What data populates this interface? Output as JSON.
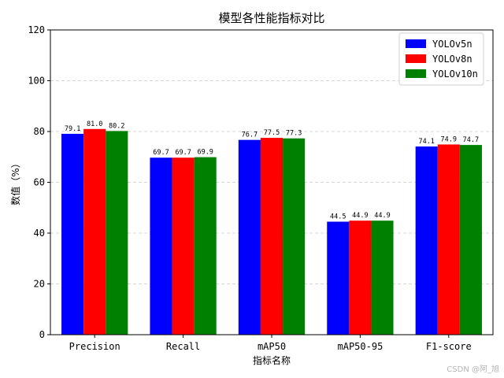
{
  "chart_data": {
    "type": "bar",
    "title": "模型各性能指标对比",
    "xlabel": "指标名称",
    "ylabel": "数值（%）",
    "ylim": [
      0,
      120
    ],
    "yticks": [
      0,
      20,
      40,
      60,
      80,
      100,
      120
    ],
    "grid": "y-dashed",
    "legend_position": "top-right",
    "categories": [
      "Precision",
      "Recall",
      "mAP50",
      "mAP50-95",
      "F1-score"
    ],
    "series": [
      {
        "name": "YOLOv5n",
        "color": "#0000ff",
        "values": [
          79.1,
          69.7,
          76.7,
          44.5,
          74.1
        ],
        "labels": [
          "79.1",
          "69.7",
          "76.7",
          "44.5",
          "74.1"
        ]
      },
      {
        "name": "YOLOv8n",
        "color": "#ff0000",
        "values": [
          81.0,
          69.7,
          77.5,
          44.9,
          74.9
        ],
        "labels": [
          "81.0",
          "69.7",
          "77.5",
          "44.9",
          "74.9"
        ]
      },
      {
        "name": "YOLOv10n",
        "color": "#008000",
        "values": [
          80.2,
          69.9,
          77.3,
          44.9,
          74.7
        ],
        "labels": [
          "80.2",
          "69.9",
          "77.3",
          "44.9",
          "74.7"
        ]
      }
    ]
  },
  "watermark": "CSDN @阿_旭"
}
